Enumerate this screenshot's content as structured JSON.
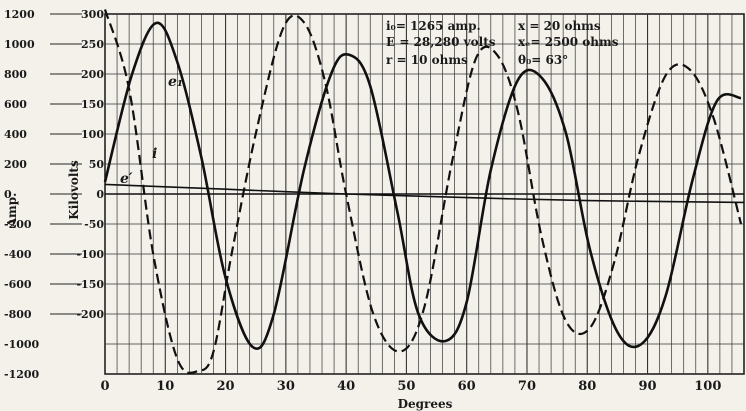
{
  "chart_data": {
    "type": "line",
    "xlabel": "Degrees",
    "ylabel_left": "Amp.",
    "ylabel_right": "Kilovolts",
    "xlim": [
      0,
      106
    ],
    "x_ticks": [
      0,
      10,
      20,
      30,
      40,
      50,
      60,
      70,
      80,
      90,
      100
    ],
    "x_tick_labels": [
      "0",
      "10",
      "20",
      "30",
      "40",
      "50",
      "60",
      "70",
      "80",
      "90",
      "100"
    ],
    "amp_lim": [
      -1200,
      1200
    ],
    "amp_tick_labels": [
      "1200",
      "1000",
      "800",
      "600",
      "400",
      "200",
      "0",
      "-200",
      "-400",
      "-600",
      "-800",
      "-1000",
      "-1200"
    ],
    "kv_lim": [
      -300,
      300
    ],
    "kv_tick_labels": [
      "300",
      "250",
      "200",
      "150",
      "100",
      "50",
      "0",
      "-50",
      "-100",
      "-150",
      "-200",
      ""
    ],
    "grid": true,
    "annotations": [
      {
        "text": "i₀= 1265 amp."
      },
      {
        "text": "E = 28,280 volts"
      },
      {
        "text": "r = 10 ohms"
      },
      {
        "text": "x = 20 ohms"
      },
      {
        "text": "xₑ= 2500 ohms"
      },
      {
        "text": "θ₀= 63°"
      }
    ],
    "series": [
      {
        "name": "e₁",
        "style": "solid",
        "axis": "kilovolts",
        "x": [
          0,
          4.5,
          8.5,
          12,
          16,
          20,
          24.5,
          28,
          33,
          37.5,
          40.5,
          44,
          48.5,
          52,
          56.5,
          60,
          64,
          68.5,
          72.5,
          76.5,
          80.5,
          85,
          89,
          93,
          97.5,
          101.5,
          105.5
        ],
        "values": [
          20,
          200,
          285,
          220,
          60,
          -140,
          -255,
          -200,
          40,
          200,
          232,
          180,
          -30,
          -200,
          -245,
          -180,
          40,
          190,
          193,
          100,
          -95,
          -230,
          -250,
          -170,
          25,
          155,
          160
        ]
      },
      {
        "name": "i",
        "style": "dashed",
        "axis": "amperes",
        "x": [
          0,
          4,
          8,
          12,
          15.5,
          18,
          21,
          25,
          29.5,
          33,
          36.5,
          40,
          44.5,
          49,
          53,
          57.5,
          61.5,
          65,
          68.5,
          72.5,
          76.5,
          80.5,
          84.5,
          88.5,
          93,
          97,
          101,
          105.5
        ],
        "values": [
          1230,
          700,
          -400,
          -1100,
          -1180,
          -1050,
          -400,
          400,
          1100,
          1145,
          750,
          0,
          -800,
          -1050,
          -750,
          200,
          900,
          930,
          550,
          -300,
          -850,
          -890,
          -450,
          250,
          790,
          830,
          500,
          -200
        ]
      },
      {
        "name": "e′",
        "style": "solid",
        "axis": "kilovolts",
        "x": [
          0,
          20,
          40,
          60,
          80,
          106
        ],
        "values": [
          16,
          8,
          0,
          -6,
          -11,
          -14
        ]
      },
      {
        "name": "",
        "style": "solid",
        "axis": "kilovolts",
        "x": [
          0,
          106
        ],
        "values": [
          0,
          0
        ]
      }
    ]
  }
}
